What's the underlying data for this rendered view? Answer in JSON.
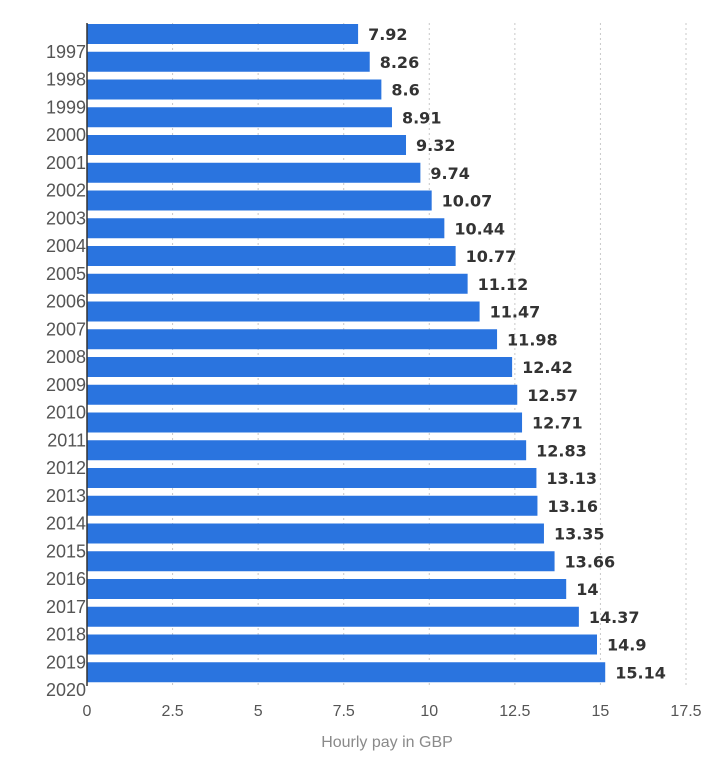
{
  "chart_data": {
    "type": "bar",
    "orientation": "horizontal",
    "categories": [
      "",
      "1997",
      "1998",
      "1999",
      "2000",
      "2001",
      "2002",
      "2003",
      "2004",
      "2005",
      "2006",
      "2007",
      "2008",
      "2009",
      "2010",
      "2011",
      "2012",
      "2013",
      "2014",
      "2015",
      "2016",
      "2017",
      "2018",
      "2019"
    ],
    "values": [
      7.92,
      8.26,
      8.6,
      8.91,
      9.32,
      9.74,
      10.07,
      10.44,
      10.77,
      11.12,
      11.47,
      11.98,
      12.42,
      12.57,
      12.71,
      12.83,
      13.13,
      13.16,
      13.35,
      13.66,
      14,
      14.37,
      14.9,
      15.14
    ],
    "value_labels": [
      "7.92",
      "8.26",
      "8.6",
      "8.91",
      "9.32",
      "9.74",
      "10.07",
      "10.44",
      "10.77",
      "11.12",
      "11.47",
      "11.98",
      "12.42",
      "12.57",
      "12.71",
      "12.83",
      "13.13",
      "13.16",
      "13.35",
      "13.66",
      "14",
      "14.37",
      "14.9",
      "15.14"
    ],
    "extra_category_label": "2020",
    "xlabel": "Hourly pay in GBP",
    "xlim": [
      0,
      17.5
    ],
    "xticks": [
      0,
      2.5,
      5,
      7.5,
      10,
      12.5,
      15,
      17.5
    ],
    "xtick_labels": [
      "0",
      "2.5",
      "5",
      "7.5",
      "10",
      "12.5",
      "15",
      "17.5"
    ],
    "grid": "vertical dotted",
    "bar_color": "#2a74df"
  }
}
